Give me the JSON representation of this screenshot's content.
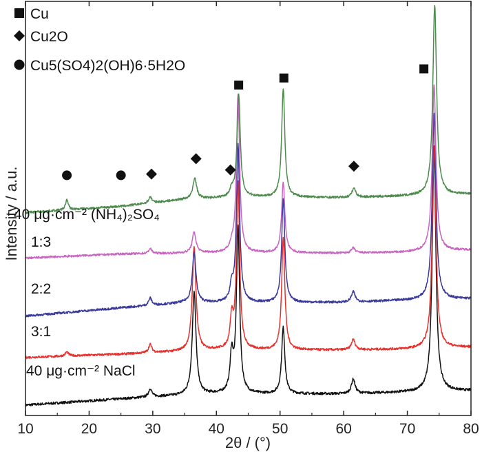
{
  "chart_data": {
    "type": "line",
    "title": "",
    "xlabel": "2θ / (°)",
    "xlabel_theta": "2θ",
    "xlabel_unit": "/ (°)",
    "ylabel": "Intensity / a.u.",
    "xlim": [
      10,
      80
    ],
    "xticks": [
      10,
      20,
      30,
      40,
      50,
      60,
      70,
      80
    ],
    "ylim": [
      0,
      100
    ],
    "legend": [
      {
        "marker": "square",
        "label": "Cu"
      },
      {
        "marker": "diamond",
        "label": "Cu2O"
      },
      {
        "marker": "circle",
        "label": "Cu5(SO4)2(OH)6·5H2O"
      }
    ],
    "series": [
      {
        "name": "40 μg·cm-2 NaCl",
        "label": "40 μg·cm⁻² NaCl",
        "color": "#111111",
        "baseline": [
          [
            10,
            2.5
          ],
          [
            30,
            4.5
          ],
          [
            40,
            5.2
          ],
          [
            60,
            5.2
          ],
          [
            70,
            5.6
          ],
          [
            80,
            6.0
          ]
        ],
        "noise": 0.6,
        "peaks": [
          [
            29.6,
            2,
            0.3
          ],
          [
            36.5,
            25,
            0.35
          ],
          [
            42.4,
            9,
            0.3
          ],
          [
            43.4,
            40,
            0.3
          ],
          [
            50.5,
            16,
            0.3
          ],
          [
            61.5,
            3.5,
            0.35
          ],
          [
            74.2,
            58,
            0.35
          ]
        ]
      },
      {
        "name": "3:1",
        "label": "3:1",
        "color": "#e8302c",
        "baseline": [
          [
            10,
            14
          ],
          [
            25,
            14.8
          ],
          [
            40,
            15.8
          ],
          [
            60,
            15.8
          ],
          [
            70,
            16
          ],
          [
            80,
            16.5
          ]
        ],
        "noise": 0.55,
        "peaks": [
          [
            16.5,
            1,
            0.3
          ],
          [
            29.6,
            2,
            0.3
          ],
          [
            36.5,
            25,
            0.35
          ],
          [
            42.4,
            7,
            0.3
          ],
          [
            43.4,
            40,
            0.3
          ],
          [
            50.5,
            27,
            0.3
          ],
          [
            61.5,
            2.5,
            0.35
          ],
          [
            74.2,
            49,
            0.35
          ]
        ]
      },
      {
        "name": "2:2",
        "label": "2:2",
        "color": "#3a3a9a",
        "baseline": [
          [
            10,
            24
          ],
          [
            25,
            26
          ],
          [
            35,
            27.2
          ],
          [
            45,
            27.2
          ],
          [
            60,
            27.3
          ],
          [
            70,
            27.8
          ],
          [
            80,
            28.2
          ]
        ],
        "noise": 0.55,
        "peaks": [
          [
            29.6,
            1.8,
            0.3
          ],
          [
            36.5,
            12,
            0.35
          ],
          [
            42.4,
            3.5,
            0.3
          ],
          [
            43.4,
            38,
            0.3
          ],
          [
            50.5,
            25,
            0.3
          ],
          [
            61.5,
            2.5,
            0.35
          ],
          [
            74.2,
            45,
            0.35
          ]
        ]
      },
      {
        "name": "1:3",
        "label": "1:3",
        "color": "#c765c1",
        "baseline": [
          [
            10,
            38
          ],
          [
            25,
            39
          ],
          [
            40,
            39.3
          ],
          [
            60,
            39.2
          ],
          [
            70,
            39.4
          ],
          [
            80,
            40
          ]
        ],
        "noise": 0.5,
        "peaks": [
          [
            29.6,
            1.2,
            0.3
          ],
          [
            36.5,
            5,
            0.35
          ],
          [
            42.4,
            1.5,
            0.3
          ],
          [
            43.4,
            38,
            0.3
          ],
          [
            50.5,
            17,
            0.3
          ],
          [
            61.5,
            1.2,
            0.35
          ],
          [
            74.2,
            40,
            0.35
          ]
        ]
      },
      {
        "name": "40 μg·cm-2 (NH4)2SO4",
        "label": "40 μg·cm⁻² (NH₄)₂SO₄",
        "color": "#4e8a4e",
        "baseline": [
          [
            10,
            49
          ],
          [
            25,
            50.5
          ],
          [
            35,
            52.2
          ],
          [
            45,
            52.8
          ],
          [
            60,
            52.6
          ],
          [
            70,
            53
          ],
          [
            80,
            53.5
          ]
        ],
        "noise": 0.55,
        "peaks": [
          [
            16.5,
            2.5,
            0.25
          ],
          [
            29.6,
            1.5,
            0.3
          ],
          [
            36.6,
            5,
            0.35
          ],
          [
            42.4,
            1.8,
            0.3
          ],
          [
            43.5,
            25,
            0.3
          ],
          [
            50.5,
            26,
            0.3
          ],
          [
            61.6,
            2.2,
            0.35
          ],
          [
            74.3,
            46,
            0.35
          ]
        ]
      }
    ],
    "annotations": [
      {
        "marker": "circle",
        "x": 16.5,
        "y": 58
      },
      {
        "marker": "circle",
        "x": 25.0,
        "y": 58
      },
      {
        "marker": "diamond",
        "x": 29.8,
        "y": 58.3
      },
      {
        "marker": "diamond",
        "x": 36.8,
        "y": 62
      },
      {
        "marker": "diamond",
        "x": 42.2,
        "y": 59.3
      },
      {
        "marker": "square",
        "x": 43.5,
        "y": 79.8
      },
      {
        "marker": "square",
        "x": 50.6,
        "y": 81.5
      },
      {
        "marker": "diamond",
        "x": 61.6,
        "y": 60.2
      },
      {
        "marker": "square",
        "x": 72.6,
        "y": 83.7
      }
    ]
  }
}
